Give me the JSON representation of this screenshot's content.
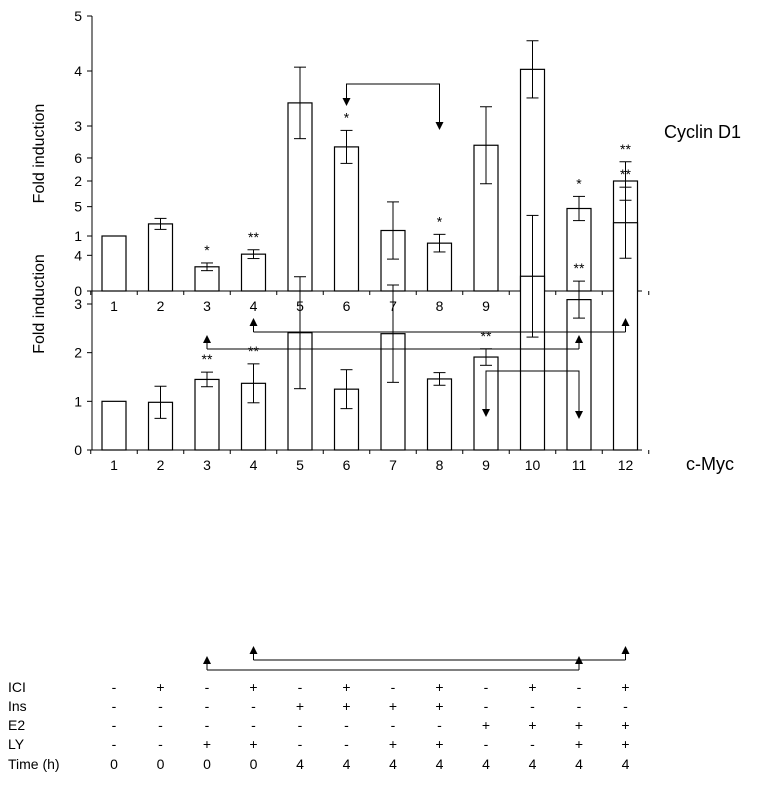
{
  "chart_data": [
    {
      "type": "bar",
      "series_label": "Cyclin D1",
      "ylabel": "Fold induction",
      "ylim": [
        0,
        5
      ],
      "yticks": [
        0,
        1,
        2,
        3,
        4,
        5
      ],
      "categories": [
        "1",
        "2",
        "3",
        "4",
        "5",
        "6",
        "7",
        "8",
        "9",
        "10",
        "11",
        "12"
      ],
      "values": [
        1.0,
        1.22,
        0.44,
        0.67,
        3.42,
        2.62,
        1.1,
        0.87,
        2.65,
        4.03,
        1.5,
        2.0
      ],
      "errors": [
        0.0,
        0.1,
        0.07,
        0.08,
        0.65,
        0.3,
        0.52,
        0.16,
        0.7,
        0.52,
        0.22,
        0.35
      ],
      "significance": [
        "",
        "",
        "*",
        "**",
        "",
        "*",
        "",
        "*",
        "",
        "",
        "*",
        "**"
      ],
      "comparisons": [
        {
          "from": "6",
          "to": "8"
        },
        {
          "from": "4",
          "to": "12"
        },
        {
          "from": "3",
          "to": "11"
        }
      ]
    },
    {
      "type": "bar",
      "series_label": "c-Myc",
      "ylabel": "Fold induction",
      "ylim": [
        0,
        6
      ],
      "yticks": [
        0,
        1,
        2,
        3,
        4,
        5,
        6
      ],
      "categories": [
        "1",
        "2",
        "3",
        "4",
        "5",
        "6",
        "7",
        "8",
        "9",
        "10",
        "11",
        "12"
      ],
      "values": [
        1.0,
        0.98,
        1.45,
        1.37,
        2.41,
        1.25,
        2.39,
        1.46,
        1.91,
        3.57,
        3.09,
        4.67
      ],
      "errors": [
        0.0,
        0.33,
        0.15,
        0.4,
        1.15,
        0.4,
        1.0,
        0.13,
        0.17,
        1.25,
        0.38,
        0.73
      ],
      "significance": [
        "",
        "",
        "**",
        "**",
        "",
        "",
        "",
        "",
        "**",
        "",
        "**",
        "**"
      ],
      "comparisons": [
        {
          "from": "9",
          "to": "11"
        },
        {
          "from": "4",
          "to": "12"
        },
        {
          "from": "3",
          "to": "11"
        }
      ]
    }
  ],
  "treatments": {
    "rows": [
      {
        "label": "ICI",
        "values": [
          "-",
          "+",
          "-",
          "+",
          "-",
          "+",
          "-",
          "+",
          "-",
          "+",
          "-",
          "+"
        ]
      },
      {
        "label": "Ins",
        "values": [
          "-",
          "-",
          "-",
          "-",
          "+",
          "+",
          "+",
          "+",
          "-",
          "-",
          "-",
          "-"
        ]
      },
      {
        "label": "E2",
        "values": [
          "-",
          "-",
          "-",
          "-",
          "-",
          "-",
          "-",
          "-",
          "+",
          "+",
          "+",
          "+"
        ]
      },
      {
        "label": "LY",
        "values": [
          "-",
          "-",
          "+",
          "+",
          "-",
          "-",
          "+",
          "+",
          "-",
          "-",
          "+",
          "+"
        ]
      },
      {
        "label": "Time (h)",
        "values": [
          "0",
          "0",
          "0",
          "0",
          "4",
          "4",
          "4",
          "4",
          "4",
          "4",
          "4",
          "4"
        ]
      }
    ]
  }
}
